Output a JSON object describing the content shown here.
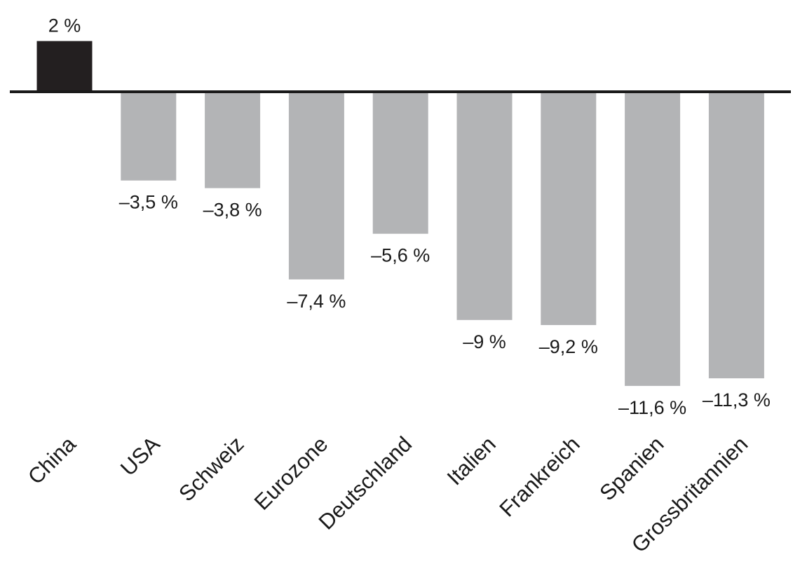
{
  "chart_data": {
    "type": "bar",
    "categories": [
      "China",
      "USA",
      "Schweiz",
      "Eurozone",
      "Deutschland",
      "Italien",
      "Frankreich",
      "Spanien",
      "Grossbritannien"
    ],
    "values": [
      2,
      -3.5,
      -3.8,
      -7.4,
      -5.6,
      -9,
      -9.2,
      -11.6,
      -11.3
    ],
    "value_labels": [
      "2 %",
      "–3,5 %",
      "–3,8 %",
      "–7,4 %",
      "–5,6 %",
      "–9 %",
      "–9,2 %",
      "–11,6 %",
      "–11,3 %"
    ],
    "title": "",
    "xlabel": "",
    "ylabel": "",
    "grid": false,
    "colors": {
      "positive": "#231f20",
      "negative": "#b3b4b6",
      "baseline": "#1a1a1a"
    }
  }
}
